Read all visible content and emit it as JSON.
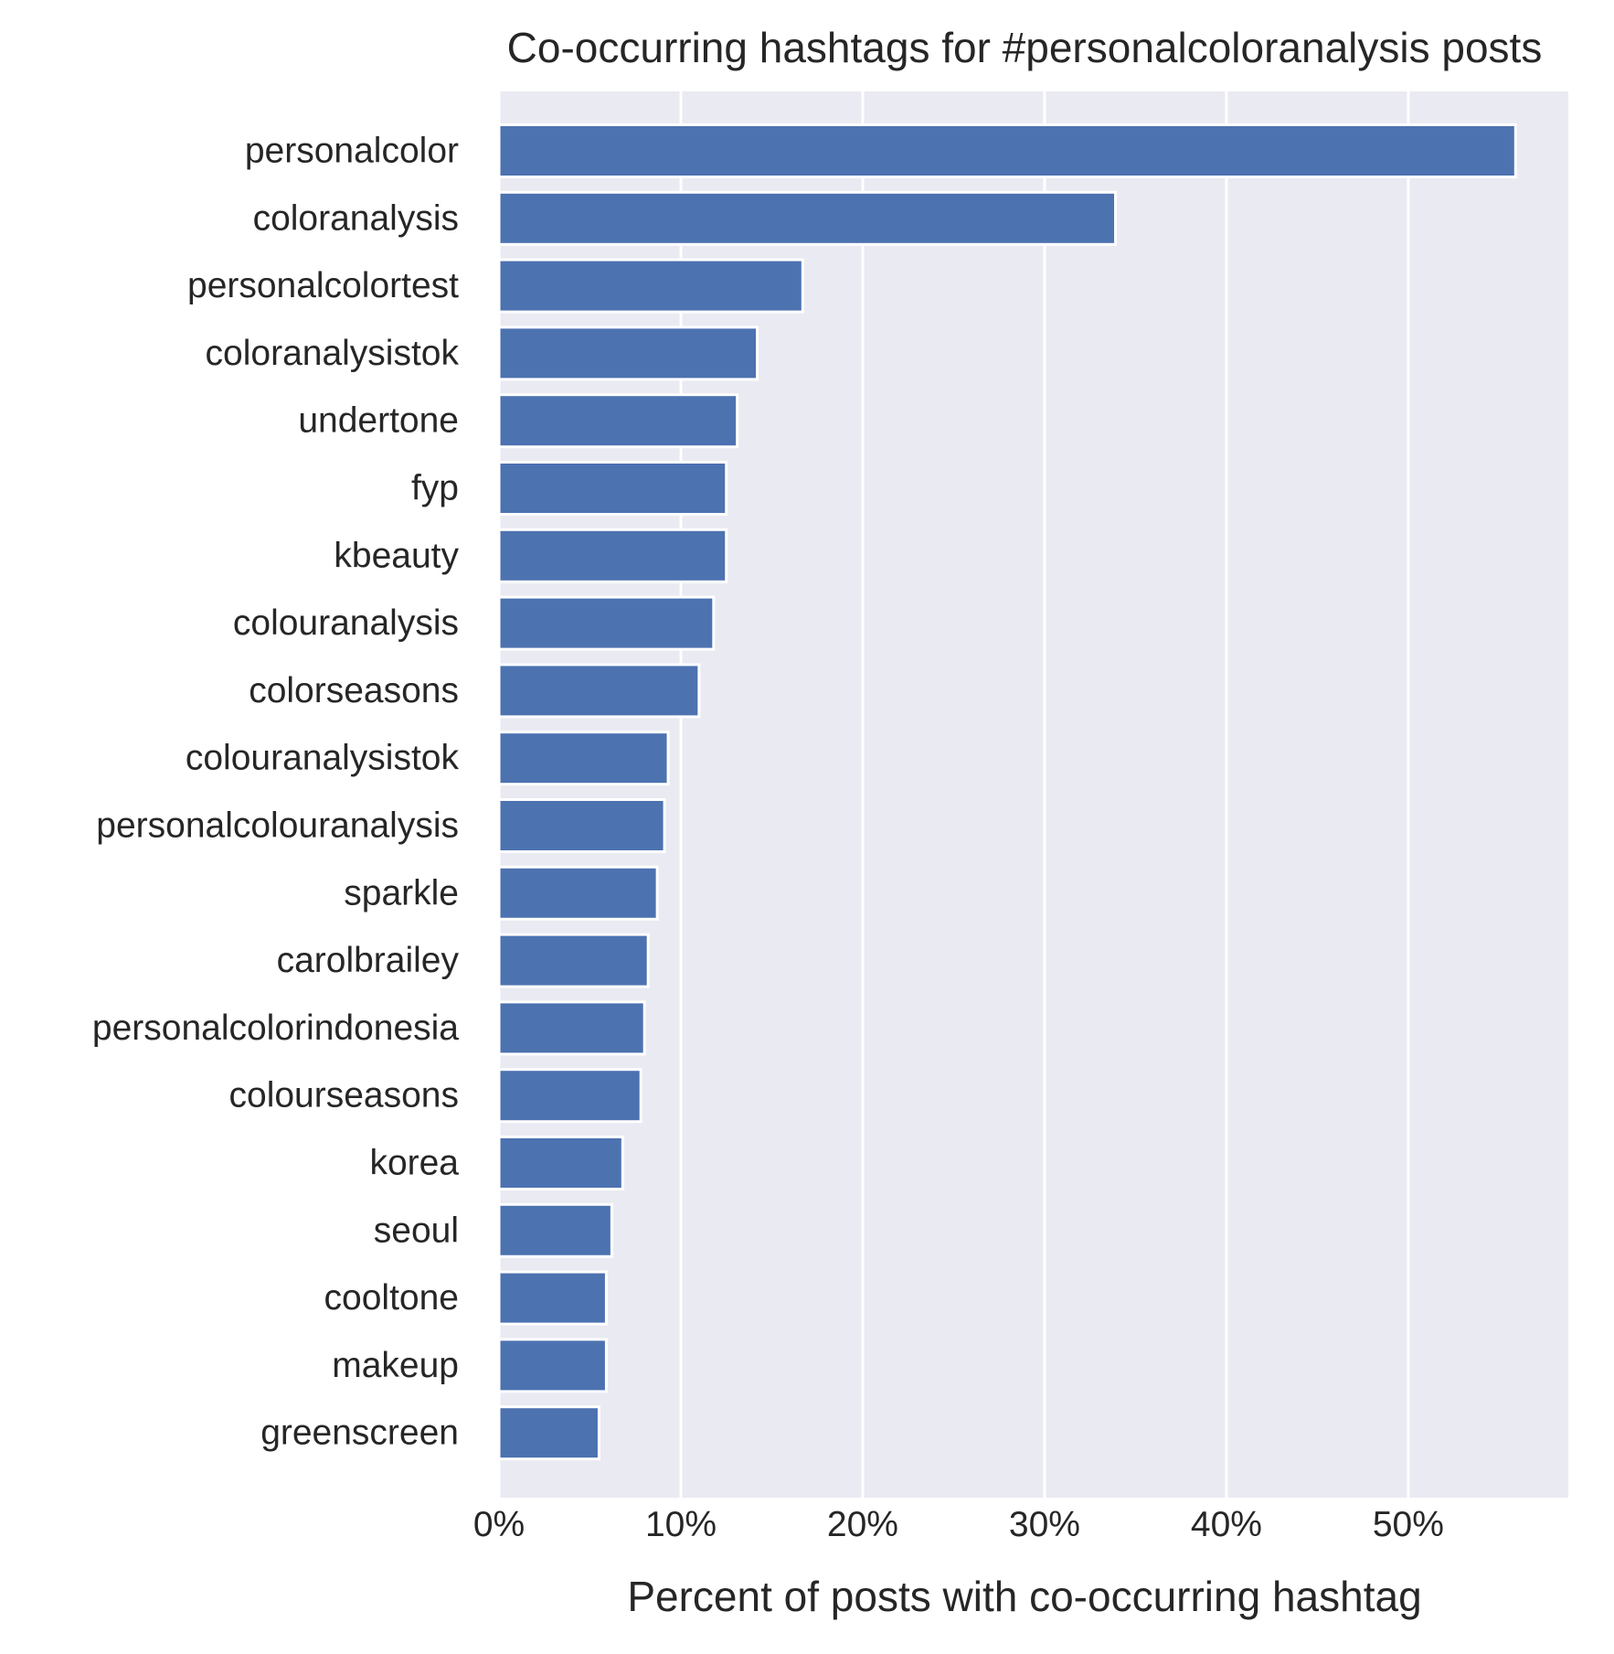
{
  "chart_data": {
    "type": "bar",
    "orientation": "horizontal",
    "title": "Co-occurring hashtags for #personalcoloranalysis posts",
    "xlabel": "Percent of posts with co-occurring hashtag",
    "ylabel": "",
    "xlim": [
      0,
      58.8
    ],
    "x_ticks": [
      0,
      10,
      20,
      30,
      40,
      50
    ],
    "x_tick_labels": [
      "0%",
      "10%",
      "20%",
      "30%",
      "40%",
      "50%"
    ],
    "grid": true,
    "legend": "none",
    "categories": [
      "personalcolor",
      "coloranalysis",
      "personalcolortest",
      "coloranalysistok",
      "undertone",
      "fyp",
      "kbeauty",
      "colouranalysis",
      "colorseasons",
      "colouranalysistok",
      "personalcolouranalysis",
      "sparkle",
      "carolbrailey",
      "personalcolorindonesia",
      "colourseasons",
      "korea",
      "seoul",
      "cooltone",
      "makeup",
      "greenscreen"
    ],
    "values": [
      55.9,
      33.9,
      16.7,
      14.2,
      13.1,
      12.5,
      12.5,
      11.8,
      11.0,
      9.3,
      9.1,
      8.7,
      8.2,
      8.0,
      7.8,
      6.8,
      6.2,
      5.9,
      5.9,
      5.5
    ]
  },
  "colors": {
    "bar": "#4c72b0",
    "plot_background": "#eaeaf2",
    "grid": "#ffffff",
    "text": "#262626"
  }
}
